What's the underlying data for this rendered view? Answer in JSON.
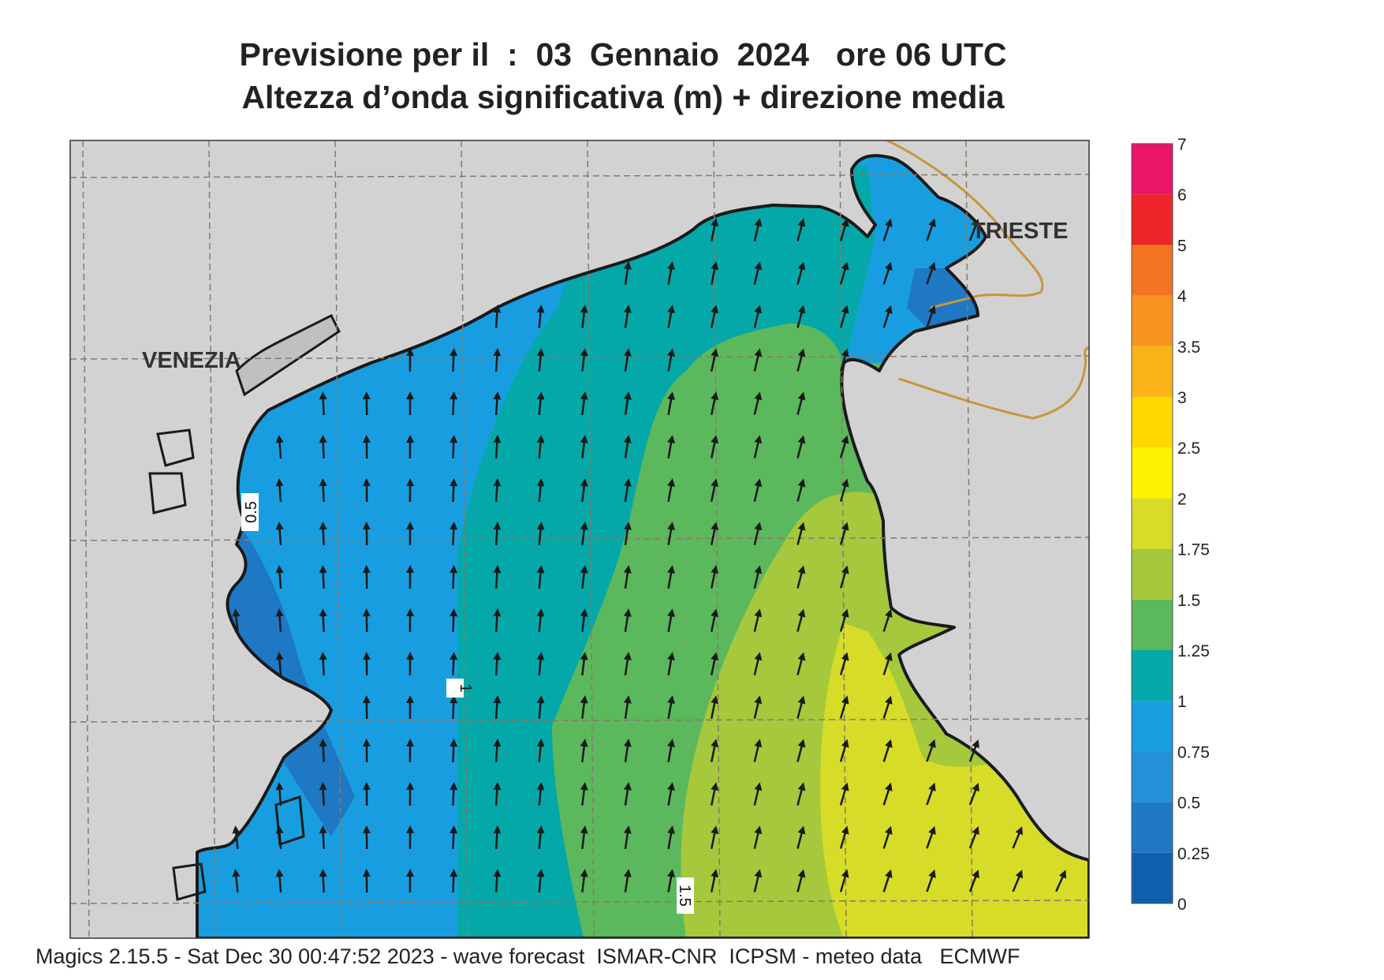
{
  "title": {
    "line1": "Previsione per il  :  03  Gennaio  2024   ore 06 UTC",
    "line2": "Altezza d’onda significativa (m) + direzione media"
  },
  "places": {
    "venezia": "VENEZIA",
    "trieste": "TRIESTE"
  },
  "contour_labels": [
    "0.5",
    "1",
    "1.5"
  ],
  "legend": {
    "levels": [
      "0",
      "0.25",
      "0.5",
      "0.75",
      "1",
      "1.25",
      "1.5",
      "1.75",
      "2",
      "2.5",
      "3",
      "3.5",
      "4",
      "5",
      "6",
      "7"
    ],
    "colors": [
      "#1060b0",
      "#1e78c4",
      "#2490d8",
      "#189ee0",
      "#05a8a8",
      "#5cb85c",
      "#a5c83c",
      "#d6dc28",
      "#fff200",
      "#ffd800",
      "#fbb418",
      "#f79420",
      "#f37422",
      "#ed2428",
      "#ea1468"
    ]
  },
  "colors": {
    "land": "#d2d2d2",
    "coast": "#1a1a1a",
    "border": "#c8963c",
    "grid": "#8a7a6a",
    "arrow": "#1a1a1a"
  },
  "footer": "Magics 2.15.5 - Sat Dec 30 00:47:52 2023 - wave forecast  ISMAR-CNR  ICPSM - meteo data   ECMWF"
}
